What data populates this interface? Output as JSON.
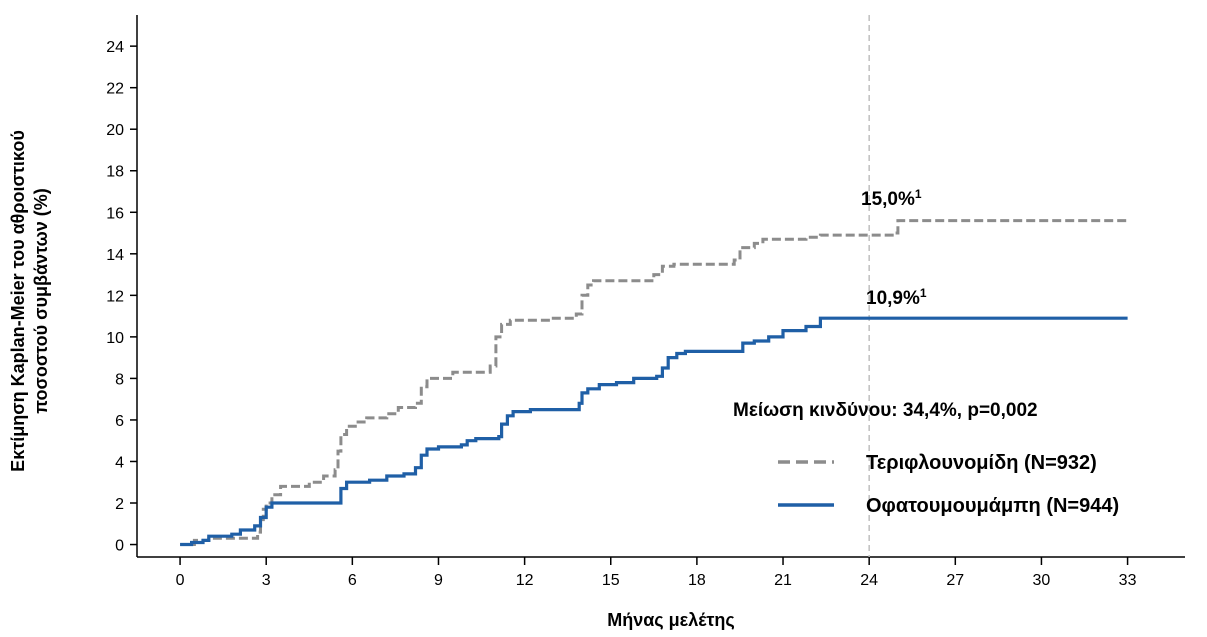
{
  "chart_data": {
    "type": "line",
    "subtype": "kaplan-meier-step",
    "xlabel": "Μήνας μελέτης",
    "ylabel_line1": "Εκτίμηση Kaplan-Meier του αθροιστικού",
    "ylabel_line2": "ποσοστού συμβάντων (%)",
    "xlim": [
      -1.5,
      35
    ],
    "ylim": [
      -0.6,
      25.5
    ],
    "x_ticks": [
      0,
      3,
      6,
      9,
      12,
      15,
      18,
      21,
      24,
      27,
      30,
      33
    ],
    "y_ticks": [
      0,
      2,
      4,
      6,
      8,
      10,
      12,
      14,
      16,
      18,
      20,
      22,
      24
    ],
    "reference_line_x": 24,
    "grid": false,
    "legend_position": "bottom-right",
    "risk_reduction_text": "Μείωση κινδύνου: 34,4%, p=0,002",
    "annotations": [
      {
        "series": "teriflunomide",
        "text": "15,0%",
        "sup": "1",
        "x": 24,
        "y": 15.0
      },
      {
        "series": "ofatumumab",
        "text": "10,9%",
        "sup": "1",
        "x": 24,
        "y": 10.9
      }
    ],
    "series": [
      {
        "key": "teriflunomide",
        "name": "Τεριφλουνομίδη (N=932)",
        "color": "#8c8c8c",
        "dash": true,
        "points": [
          [
            0,
            0
          ],
          [
            0.5,
            0.2
          ],
          [
            1,
            0.3
          ],
          [
            2.6,
            0.3
          ],
          [
            2.7,
            0.6
          ],
          [
            2.8,
            1.2
          ],
          [
            2.9,
            1.7
          ],
          [
            3,
            2.0
          ],
          [
            3.2,
            2.4
          ],
          [
            3.5,
            2.8
          ],
          [
            4.5,
            3.0
          ],
          [
            5,
            3.3
          ],
          [
            5.4,
            3.6
          ],
          [
            5.5,
            4.5
          ],
          [
            5.6,
            5.3
          ],
          [
            5.8,
            5.7
          ],
          [
            6.2,
            5.9
          ],
          [
            6.5,
            6.1
          ],
          [
            7.2,
            6.3
          ],
          [
            7.6,
            6.6
          ],
          [
            8.2,
            6.8
          ],
          [
            8.4,
            7.6
          ],
          [
            8.6,
            8.0
          ],
          [
            9.5,
            8.3
          ],
          [
            10.8,
            8.6
          ],
          [
            11,
            10.0
          ],
          [
            11.2,
            10.6
          ],
          [
            11.5,
            10.8
          ],
          [
            13,
            10.9
          ],
          [
            13.8,
            11.1
          ],
          [
            14,
            12.0
          ],
          [
            14.2,
            12.5
          ],
          [
            14.4,
            12.7
          ],
          [
            16.5,
            13.0
          ],
          [
            16.8,
            13.4
          ],
          [
            17.2,
            13.5
          ],
          [
            19.3,
            13.7
          ],
          [
            19.5,
            14.3
          ],
          [
            20,
            14.5
          ],
          [
            20.3,
            14.7
          ],
          [
            21.8,
            14.8
          ],
          [
            22.3,
            14.9
          ],
          [
            24.9,
            15.0
          ],
          [
            25,
            15.6
          ],
          [
            33,
            15.6
          ]
        ]
      },
      {
        "key": "ofatumumab",
        "name": "Οφατουμουμάμπη (N=944)",
        "color": "#1f5fa6",
        "dash": false,
        "points": [
          [
            0,
            0
          ],
          [
            0.4,
            0.1
          ],
          [
            0.8,
            0.2
          ],
          [
            1,
            0.4
          ],
          [
            1.8,
            0.5
          ],
          [
            2.1,
            0.7
          ],
          [
            2.6,
            0.9
          ],
          [
            2.8,
            1.3
          ],
          [
            3,
            1.8
          ],
          [
            3.2,
            2.0
          ],
          [
            5.5,
            2.0
          ],
          [
            5.6,
            2.7
          ],
          [
            5.8,
            3.0
          ],
          [
            6.6,
            3.1
          ],
          [
            7.2,
            3.3
          ],
          [
            7.8,
            3.4
          ],
          [
            8.2,
            3.7
          ],
          [
            8.4,
            4.3
          ],
          [
            8.6,
            4.6
          ],
          [
            9,
            4.7
          ],
          [
            9.8,
            4.8
          ],
          [
            10,
            5.0
          ],
          [
            10.3,
            5.1
          ],
          [
            11.1,
            5.2
          ],
          [
            11.2,
            5.8
          ],
          [
            11.4,
            6.2
          ],
          [
            11.6,
            6.4
          ],
          [
            12.2,
            6.5
          ],
          [
            13.8,
            6.5
          ],
          [
            13.9,
            6.8
          ],
          [
            14,
            7.3
          ],
          [
            14.2,
            7.5
          ],
          [
            14.6,
            7.7
          ],
          [
            15.2,
            7.8
          ],
          [
            15.8,
            8.0
          ],
          [
            16.6,
            8.1
          ],
          [
            16.8,
            8.5
          ],
          [
            17,
            9.0
          ],
          [
            17.3,
            9.2
          ],
          [
            17.6,
            9.3
          ],
          [
            19.5,
            9.3
          ],
          [
            19.6,
            9.7
          ],
          [
            20,
            9.8
          ],
          [
            20.5,
            10.0
          ],
          [
            21,
            10.3
          ],
          [
            21.8,
            10.5
          ],
          [
            22.3,
            10.9
          ],
          [
            33,
            10.9
          ]
        ]
      }
    ]
  }
}
